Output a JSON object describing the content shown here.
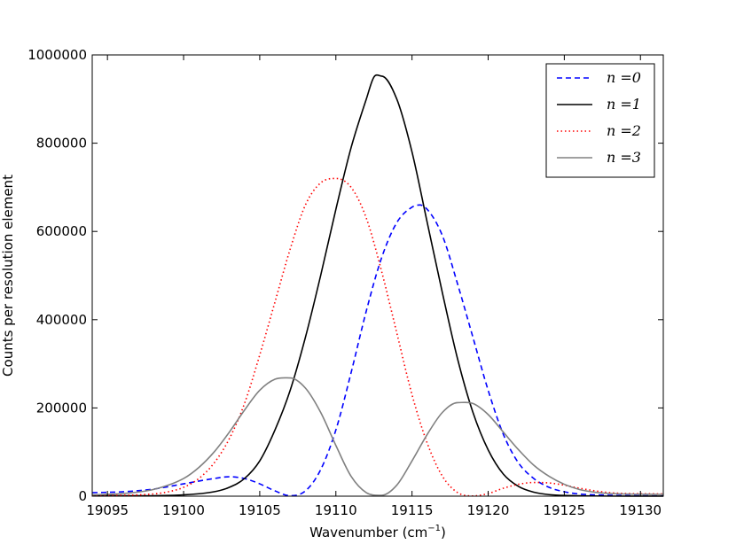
{
  "chart_data": {
    "type": "line",
    "xlabel": "Wavenumber (cm",
    "xlabel_sup": "−1",
    "xlabel_suffix": ")",
    "ylabel": "Counts per resolution element",
    "xlim": [
      19094,
      19131.5
    ],
    "ylim": [
      0,
      1000000
    ],
    "xticks": [
      19095,
      19100,
      19105,
      19110,
      19115,
      19120,
      19125,
      19130
    ],
    "yticks": [
      0,
      200000,
      400000,
      600000,
      800000,
      1000000
    ],
    "legend": "top-right",
    "grid": false,
    "series": [
      {
        "name": "n =0",
        "color": "#0000ff",
        "style": "dashed",
        "x": [
          19094,
          19096,
          19098,
          19100,
          19102,
          19103,
          19104,
          19105,
          19106,
          19107,
          19108,
          19109,
          19110,
          19111,
          19112,
          19113,
          19114,
          19115,
          19115.5,
          19116,
          19117,
          19118,
          19119,
          19120,
          19121,
          19122,
          19123,
          19124,
          19125,
          19126,
          19128,
          19131.5
        ],
        "y": [
          8000,
          10000,
          16000,
          28000,
          40000,
          44000,
          40000,
          28000,
          12000,
          1000,
          12000,
          60000,
          150000,
          280000,
          420000,
          540000,
          620000,
          655000,
          660000,
          650000,
          590000,
          480000,
          360000,
          240000,
          140000,
          75000,
          40000,
          20000,
          10000,
          5000,
          2000,
          500
        ]
      },
      {
        "name": "n =1",
        "color": "#000000",
        "style": "solid",
        "x": [
          19094,
          19100,
          19102,
          19103,
          19104,
          19105,
          19106,
          19107,
          19108,
          19109,
          19110,
          19111,
          19112,
          19112.5,
          19113,
          19114,
          19115,
          19116,
          19117,
          19118,
          19119,
          19120,
          19121,
          19122,
          19123,
          19124,
          19126,
          19131.5
        ],
        "y": [
          1000,
          3000,
          10000,
          20000,
          40000,
          80000,
          150000,
          240000,
          360000,
          500000,
          650000,
          790000,
          900000,
          950000,
          952000,
          900000,
          780000,
          620000,
          460000,
          310000,
          190000,
          105000,
          50000,
          22000,
          9000,
          3500,
          1000,
          100
        ]
      },
      {
        "name": "n =2",
        "color": "#ff0000",
        "style": "dotted",
        "x": [
          19094,
          19098,
          19099,
          19100,
          19101,
          19102,
          19103,
          19104,
          19105,
          19106,
          19107,
          19108,
          19109,
          19110,
          19111,
          19112,
          19113,
          19114,
          19115,
          19116,
          19117,
          19118,
          19119,
          19120,
          19121,
          19122,
          19123,
          19124,
          19125,
          19126,
          19128,
          19131.5
        ],
        "y": [
          1000,
          5000,
          10000,
          20000,
          40000,
          75000,
          130000,
          210000,
          320000,
          440000,
          560000,
          660000,
          710000,
          720000,
          700000,
          630000,
          510000,
          370000,
          230000,
          120000,
          45000,
          8000,
          500,
          6000,
          18000,
          27000,
          31000,
          30000,
          25000,
          18000,
          8000,
          5000
        ]
      },
      {
        "name": "n =3",
        "color": "#808080",
        "style": "solid",
        "x": [
          19094,
          19096,
          19098,
          19100,
          19101,
          19102,
          19103,
          19104,
          19105,
          19106,
          19107,
          19108,
          19109,
          19110,
          19111,
          19112,
          19113,
          19114,
          19115,
          19116,
          19117,
          19118,
          19119,
          19120,
          19121,
          19122,
          19123,
          19124,
          19125,
          19126,
          19127,
          19128,
          19131.5
        ],
        "y": [
          3000,
          6000,
          15000,
          40000,
          65000,
          100000,
          145000,
          195000,
          240000,
          265000,
          268000,
          245000,
          190000,
          115000,
          45000,
          8000,
          2000,
          25000,
          80000,
          140000,
          190000,
          212000,
          210000,
          185000,
          145000,
          105000,
          70000,
          45000,
          27000,
          15000,
          9000,
          6000,
          4000
        ]
      }
    ]
  }
}
